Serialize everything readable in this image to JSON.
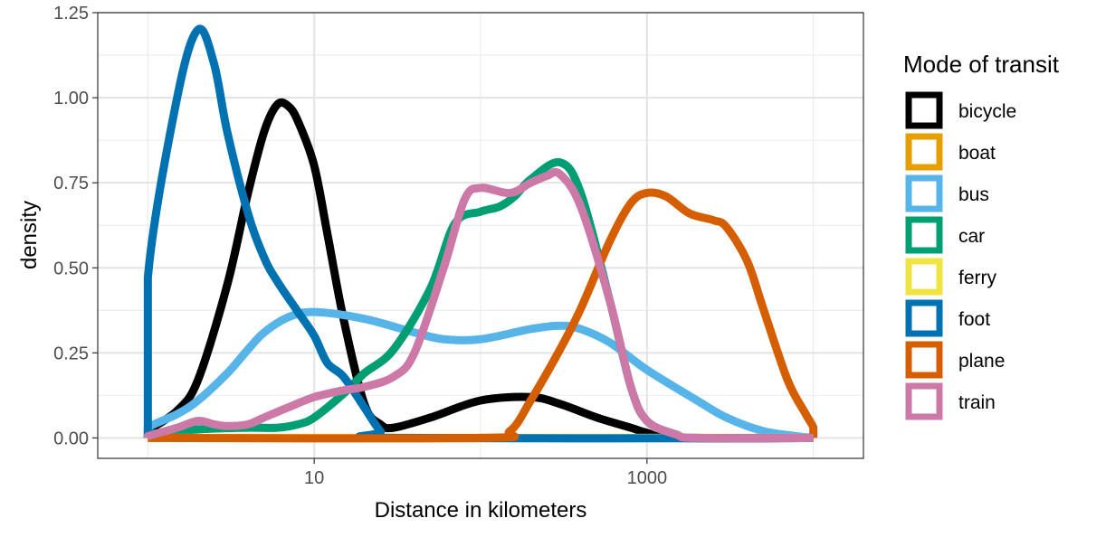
{
  "chart_data": {
    "type": "line",
    "title": "",
    "xlabel": "Distance in kilometers",
    "ylabel": "density",
    "x_scale": "log10",
    "xlim": [
      0.5,
      20000
    ],
    "ylim": [
      -0.06,
      1.25
    ],
    "x_ticks": [
      {
        "value": 10,
        "label": "10"
      },
      {
        "value": 1000,
        "label": "1000"
      }
    ],
    "y_ticks": [
      {
        "value": 0,
        "label": "0.00"
      },
      {
        "value": 0.25,
        "label": "0.25"
      },
      {
        "value": 0.5,
        "label": "0.50"
      },
      {
        "value": 0.75,
        "label": "0.75"
      },
      {
        "value": 1,
        "label": "1.00"
      },
      {
        "value": 1.25,
        "label": "1.25"
      }
    ],
    "grid": true,
    "legend": {
      "title": "Mode of transit",
      "position": "right"
    },
    "series": [
      {
        "name": "bicycle",
        "color": "#000000",
        "points": [
          [
            1,
            0
          ],
          [
            1,
            0.02
          ],
          [
            1.5,
            0.08
          ],
          [
            2,
            0.17
          ],
          [
            3,
            0.45
          ],
          [
            4,
            0.72
          ],
          [
            5,
            0.9
          ],
          [
            6,
            0.98
          ],
          [
            7,
            0.975
          ],
          [
            8,
            0.93
          ],
          [
            10,
            0.8
          ],
          [
            12,
            0.6
          ],
          [
            15,
            0.35
          ],
          [
            20,
            0.1
          ],
          [
            25,
            0.04
          ],
          [
            30,
            0.03
          ],
          [
            50,
            0.06
          ],
          [
            100,
            0.11
          ],
          [
            200,
            0.12
          ],
          [
            300,
            0.1
          ],
          [
            500,
            0.06
          ],
          [
            800,
            0.03
          ],
          [
            1000,
            0.015
          ],
          [
            1500,
            0
          ],
          [
            10000,
            0
          ]
        ]
      },
      {
        "name": "boat",
        "color": "#E69F00",
        "points": [
          [
            1,
            0
          ],
          [
            10000,
            0
          ]
        ]
      },
      {
        "name": "bus",
        "color": "#56B4E9",
        "points": [
          [
            1,
            0
          ],
          [
            1,
            0.03
          ],
          [
            1.5,
            0.07
          ],
          [
            2,
            0.11
          ],
          [
            3,
            0.19
          ],
          [
            4,
            0.26
          ],
          [
            5,
            0.31
          ],
          [
            7,
            0.355
          ],
          [
            10,
            0.37
          ],
          [
            20,
            0.35
          ],
          [
            40,
            0.31
          ],
          [
            60,
            0.29
          ],
          [
            100,
            0.29
          ],
          [
            200,
            0.32
          ],
          [
            300,
            0.33
          ],
          [
            400,
            0.32
          ],
          [
            600,
            0.28
          ],
          [
            1000,
            0.2
          ],
          [
            2000,
            0.11
          ],
          [
            3000,
            0.06
          ],
          [
            5000,
            0.02
          ],
          [
            8000,
            0.005
          ],
          [
            10000,
            0
          ]
        ]
      },
      {
        "name": "car",
        "color": "#009E73",
        "points": [
          [
            1,
            0
          ],
          [
            1,
            0.01
          ],
          [
            2,
            0.025
          ],
          [
            4,
            0.03
          ],
          [
            6,
            0.03
          ],
          [
            8,
            0.04
          ],
          [
            10,
            0.06
          ],
          [
            15,
            0.13
          ],
          [
            20,
            0.19
          ],
          [
            30,
            0.26
          ],
          [
            50,
            0.44
          ],
          [
            70,
            0.63
          ],
          [
            100,
            0.665
          ],
          [
            130,
            0.68
          ],
          [
            160,
            0.71
          ],
          [
            200,
            0.76
          ],
          [
            300,
            0.81
          ],
          [
            400,
            0.72
          ],
          [
            600,
            0.4
          ],
          [
            800,
            0.15
          ],
          [
            1000,
            0.05
          ],
          [
            1500,
            0.01
          ],
          [
            2000,
            0
          ],
          [
            10000,
            0
          ]
        ]
      },
      {
        "name": "ferry",
        "color": "#F0E442",
        "points": [
          [
            1,
            0
          ],
          [
            10000,
            0
          ]
        ]
      },
      {
        "name": "foot",
        "color": "#0072B2",
        "points": [
          [
            1,
            0
          ],
          [
            1,
            0.47
          ],
          [
            1.5,
            1.0
          ],
          [
            2,
            1.2
          ],
          [
            2.5,
            1.1
          ],
          [
            3,
            0.9
          ],
          [
            4,
            0.66
          ],
          [
            5,
            0.53
          ],
          [
            6,
            0.46
          ],
          [
            8,
            0.37
          ],
          [
            10,
            0.3
          ],
          [
            12,
            0.22
          ],
          [
            15,
            0.18
          ],
          [
            20,
            0.09
          ],
          [
            25,
            0.02
          ],
          [
            30,
            0
          ],
          [
            10000,
            0
          ]
        ]
      },
      {
        "name": "plane",
        "color": "#D55E00",
        "points": [
          [
            1,
            0
          ],
          [
            100,
            0
          ],
          [
            150,
            0.02
          ],
          [
            200,
            0.11
          ],
          [
            300,
            0.26
          ],
          [
            400,
            0.38
          ],
          [
            600,
            0.58
          ],
          [
            800,
            0.69
          ],
          [
            1000,
            0.72
          ],
          [
            1300,
            0.71
          ],
          [
            1800,
            0.66
          ],
          [
            2500,
            0.64
          ],
          [
            3000,
            0.62
          ],
          [
            4000,
            0.52
          ],
          [
            5000,
            0.38
          ],
          [
            7000,
            0.17
          ],
          [
            9000,
            0.07
          ],
          [
            10000,
            0.03
          ],
          [
            10000,
            0
          ]
        ]
      },
      {
        "name": "train",
        "color": "#CC79A7",
        "points": [
          [
            1,
            0
          ],
          [
            1,
            0.005
          ],
          [
            1.5,
            0.03
          ],
          [
            2,
            0.05
          ],
          [
            2.5,
            0.04
          ],
          [
            3,
            0.035
          ],
          [
            4,
            0.04
          ],
          [
            5,
            0.06
          ],
          [
            7,
            0.09
          ],
          [
            10,
            0.12
          ],
          [
            15,
            0.14
          ],
          [
            20,
            0.15
          ],
          [
            30,
            0.18
          ],
          [
            40,
            0.25
          ],
          [
            60,
            0.5
          ],
          [
            80,
            0.7
          ],
          [
            100,
            0.735
          ],
          [
            150,
            0.72
          ],
          [
            200,
            0.75
          ],
          [
            250,
            0.77
          ],
          [
            300,
            0.775
          ],
          [
            400,
            0.68
          ],
          [
            600,
            0.4
          ],
          [
            800,
            0.15
          ],
          [
            1000,
            0.05
          ],
          [
            1500,
            0.01
          ],
          [
            2000,
            0
          ],
          [
            10000,
            0
          ]
        ]
      }
    ]
  }
}
